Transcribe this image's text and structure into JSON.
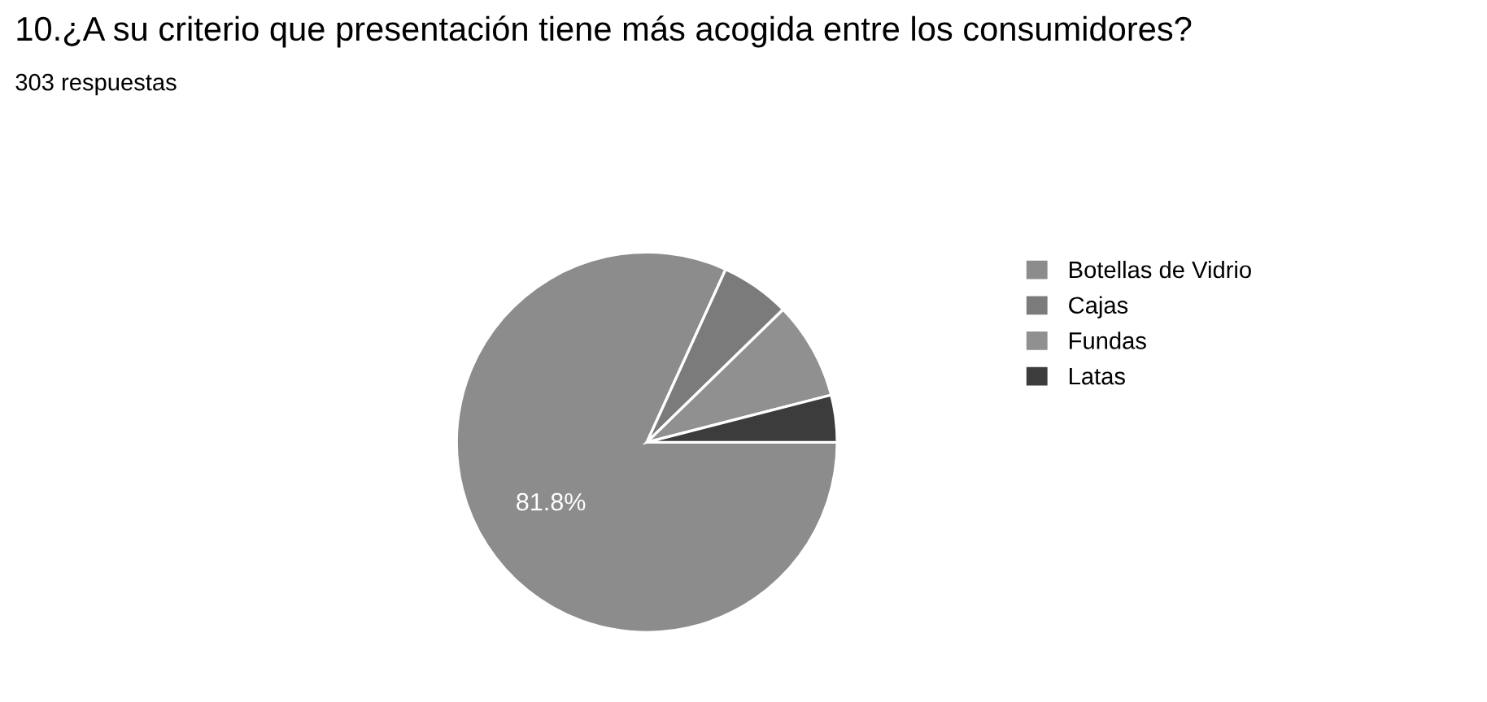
{
  "chart_data": {
    "type": "pie",
    "title": "10.¿A su criterio que presentación tiene más acogida entre los consumidores?",
    "subtitle": "303 respuestas",
    "categories": [
      "Botellas de Vidrio",
      "Cajas",
      "Fundas",
      "Latas"
    ],
    "values": [
      81.8,
      5.9,
      8.3,
      4.0
    ],
    "colors": [
      "#8c8c8c",
      "#7b7b7b",
      "#909090",
      "#3c3c3c"
    ],
    "value_labels": [
      "81.8%",
      null,
      null,
      null
    ],
    "legend": "right"
  }
}
